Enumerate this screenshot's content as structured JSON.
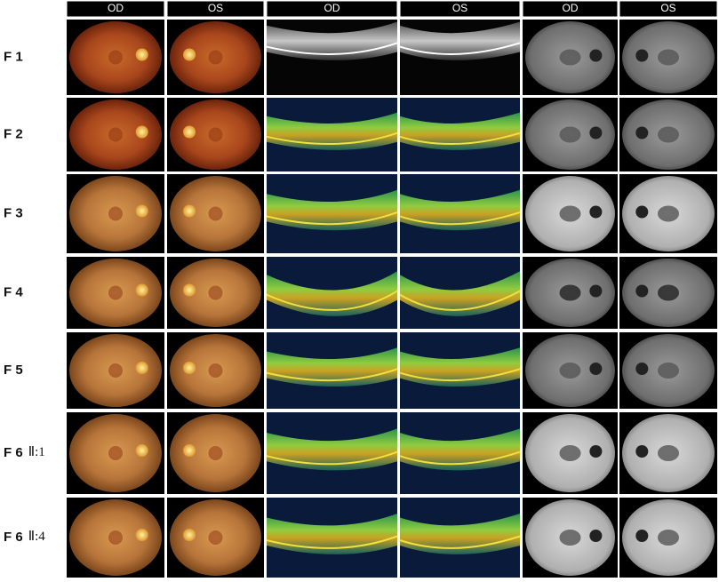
{
  "figure": {
    "headers": [
      "OD",
      "OS",
      "OD",
      "OS",
      "OD",
      "OS"
    ],
    "rows": [
      {
        "label": "F 1"
      },
      {
        "label": "F 2"
      },
      {
        "label": "F 3"
      },
      {
        "label": "F 4"
      },
      {
        "label": "F 5"
      },
      {
        "label": "F 6",
        "sublabel": "Ⅱ:1"
      },
      {
        "label": "F 6",
        "sublabel": "Ⅱ:4"
      }
    ]
  }
}
